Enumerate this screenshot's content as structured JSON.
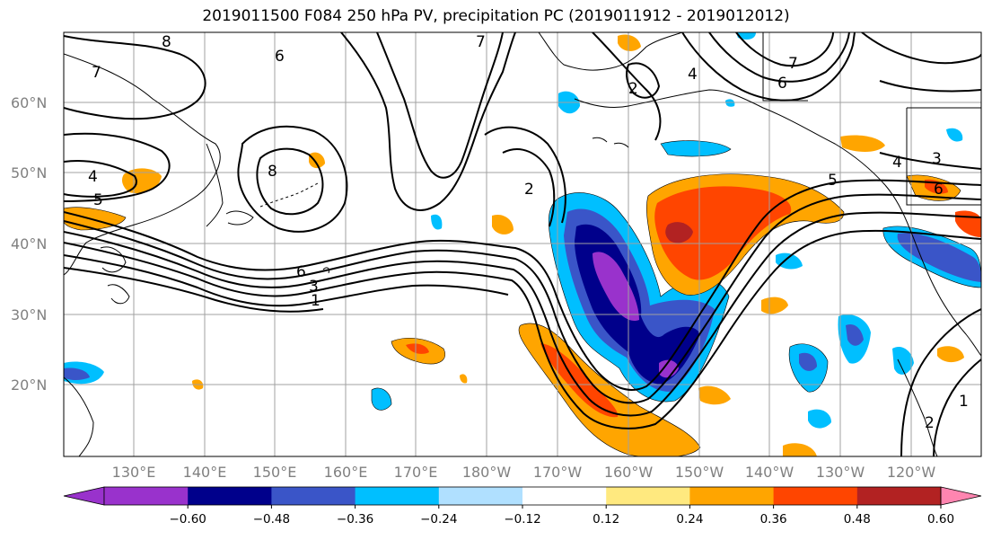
{
  "title": "2019011500 F084 250 hPa PV, precipitation PC (2019011912 - 2019012012)",
  "map": {
    "lat_labels": [
      "60°N",
      "50°N",
      "40°N",
      "30°N",
      "20°N"
    ],
    "lon_labels": [
      "130°E",
      "140°E",
      "150°E",
      "160°E",
      "170°E",
      "180°W",
      "170°W",
      "160°W",
      "150°W",
      "140°W",
      "130°W",
      "120°W"
    ],
    "contour_labels": [
      "8",
      "7",
      "7",
      "6",
      "6",
      "7",
      "5",
      "4",
      "5",
      "8",
      "6",
      "3",
      "1",
      "2",
      "2",
      "4",
      "3",
      "4",
      "6",
      "2",
      "1"
    ],
    "colors": {
      "land_outline": "#000000",
      "gridline": "#a0a0a0",
      "contour": "#000000"
    }
  },
  "colorbar": {
    "tick_labels": [
      "−0.60",
      "−0.48",
      "−0.36",
      "−0.24",
      "−0.12",
      "0.12",
      "0.24",
      "0.36",
      "0.48",
      "0.60"
    ],
    "colors": [
      "#9932cc",
      "#00008b",
      "#3a55c8",
      "#00bfff",
      "#b0e0ff",
      "#ffffff",
      "#ffe97f",
      "#ffa500",
      "#ff4500",
      "#b22222",
      "#ff85b0"
    ]
  }
}
